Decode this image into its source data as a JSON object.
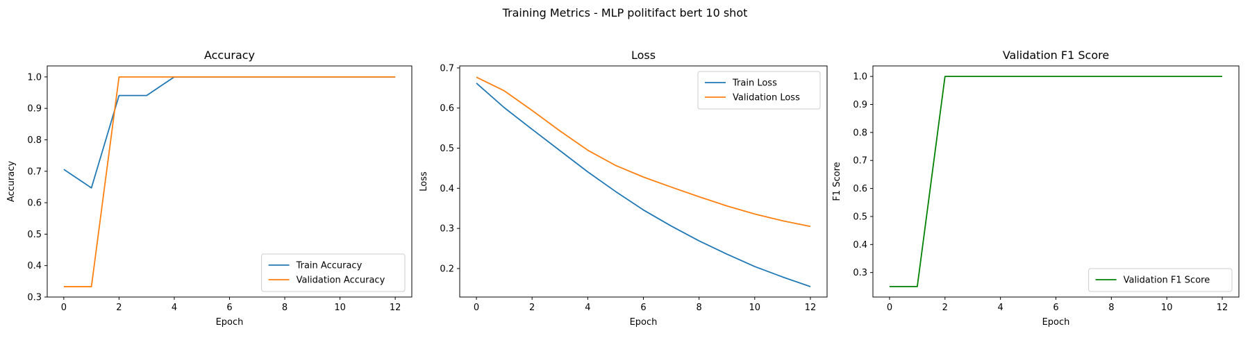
{
  "figure": {
    "suptitle": "Training Metrics - MLP politifact bert 10 shot"
  },
  "chart_data": [
    {
      "type": "line",
      "title": "Accuracy",
      "xlabel": "Epoch",
      "ylabel": "Accuracy",
      "xlim": [
        -0.6,
        12.6
      ],
      "ylim": [
        0.3,
        1.035
      ],
      "xticks": [
        0,
        2,
        4,
        6,
        8,
        10,
        12
      ],
      "yticks": [
        0.3,
        0.4,
        0.5,
        0.6,
        0.7,
        0.8,
        0.9,
        1.0
      ],
      "ytick_labels": [
        "0.3",
        "0.4",
        "0.5",
        "0.6",
        "0.7",
        "0.8",
        "0.9",
        "1.0"
      ],
      "grid": false,
      "legend_position": "lower-right",
      "x": [
        0,
        1,
        2,
        3,
        4,
        5,
        6,
        7,
        8,
        9,
        10,
        11,
        12
      ],
      "series": [
        {
          "name": "Train Accuracy",
          "color": "#1f77b4",
          "values": [
            0.706,
            0.647,
            0.941,
            0.941,
            1.0,
            1.0,
            1.0,
            1.0,
            1.0,
            1.0,
            1.0,
            1.0,
            1.0
          ]
        },
        {
          "name": "Validation Accuracy",
          "color": "#ff7f0e",
          "values": [
            0.333,
            0.333,
            1.0,
            1.0,
            1.0,
            1.0,
            1.0,
            1.0,
            1.0,
            1.0,
            1.0,
            1.0,
            1.0
          ]
        }
      ]
    },
    {
      "type": "line",
      "title": "Loss",
      "xlabel": "Epoch",
      "ylabel": "Loss",
      "xlim": [
        -0.6,
        12.6
      ],
      "ylim": [
        0.129,
        0.705
      ],
      "xticks": [
        0,
        2,
        4,
        6,
        8,
        10,
        12
      ],
      "yticks": [
        0.2,
        0.3,
        0.4,
        0.5,
        0.6,
        0.7
      ],
      "ytick_labels": [
        "0.2",
        "0.3",
        "0.4",
        "0.5",
        "0.6",
        "0.7"
      ],
      "grid": false,
      "legend_position": "upper-right",
      "x": [
        0,
        1,
        2,
        3,
        4,
        5,
        6,
        7,
        8,
        9,
        10,
        11,
        12
      ],
      "series": [
        {
          "name": "Train Loss",
          "color": "#1f77b4",
          "values": [
            0.662,
            0.601,
            0.547,
            0.494,
            0.441,
            0.392,
            0.346,
            0.306,
            0.269,
            0.236,
            0.205,
            0.179,
            0.155
          ]
        },
        {
          "name": "Validation Loss",
          "color": "#ff7f0e",
          "values": [
            0.677,
            0.643,
            0.594,
            0.543,
            0.495,
            0.457,
            0.428,
            0.403,
            0.379,
            0.356,
            0.336,
            0.319,
            0.305
          ]
        }
      ]
    },
    {
      "type": "line",
      "title": "Validation F1 Score",
      "xlabel": "Epoch",
      "ylabel": "F1 Score",
      "xlim": [
        -0.6,
        12.6
      ],
      "ylim": [
        0.2125,
        1.0375
      ],
      "xticks": [
        0,
        2,
        4,
        6,
        8,
        10,
        12
      ],
      "yticks": [
        0.3,
        0.4,
        0.5,
        0.6,
        0.7,
        0.8,
        0.9,
        1.0
      ],
      "ytick_labels": [
        "0.3",
        "0.4",
        "0.5",
        "0.6",
        "0.7",
        "0.8",
        "0.9",
        "1.0"
      ],
      "grid": false,
      "legend_position": "lower-right",
      "x": [
        0,
        1,
        2,
        3,
        4,
        5,
        6,
        7,
        8,
        9,
        10,
        11,
        12
      ],
      "series": [
        {
          "name": "Validation F1 Score",
          "color": "#008000",
          "values": [
            0.25,
            0.25,
            1.0,
            1.0,
            1.0,
            1.0,
            1.0,
            1.0,
            1.0,
            1.0,
            1.0,
            1.0,
            1.0
          ]
        }
      ]
    }
  ]
}
